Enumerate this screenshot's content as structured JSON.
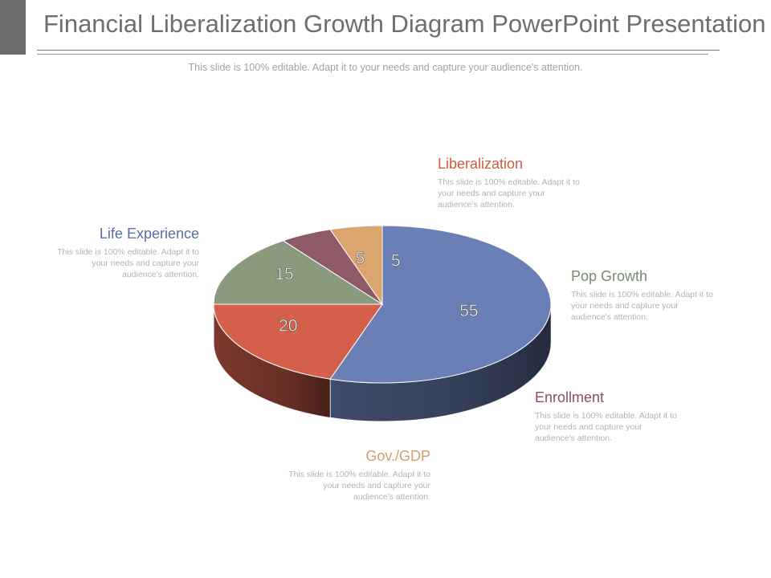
{
  "title": "Financial Liberalization Growth Diagram PowerPoint Presentation",
  "subtitle": "This slide is 100% editable. Adapt it to your needs and capture your audience's attention.",
  "chart_data": {
    "type": "pie",
    "title": "",
    "slices": [
      {
        "name": "Life Experience",
        "value": 55,
        "color": "#6a7fb5",
        "desc": "This slide is 100% editable. Adapt it to your needs and capture your audience's attention."
      },
      {
        "name": "Liberalization",
        "value": 20,
        "color": "#d45f4b",
        "desc": "This slide is 100% editable. Adapt it to your needs and capture your audience's attention."
      },
      {
        "name": "Pop Growth",
        "value": 15,
        "color": "#8a9a7c",
        "desc": "This slide is 100% editable. Adapt it to your needs and capture your audience's attention."
      },
      {
        "name": "Enrollment",
        "value": 5,
        "color": "#8f5a68",
        "desc": "This slide is 100% editable. Adapt it to your needs and capture your audience's attention."
      },
      {
        "name": "Gov./GDP",
        "value": 5,
        "color": "#dba66e",
        "desc": "This slide is 100% editable. Adapt it to your needs and capture your audience's attention."
      }
    ]
  }
}
